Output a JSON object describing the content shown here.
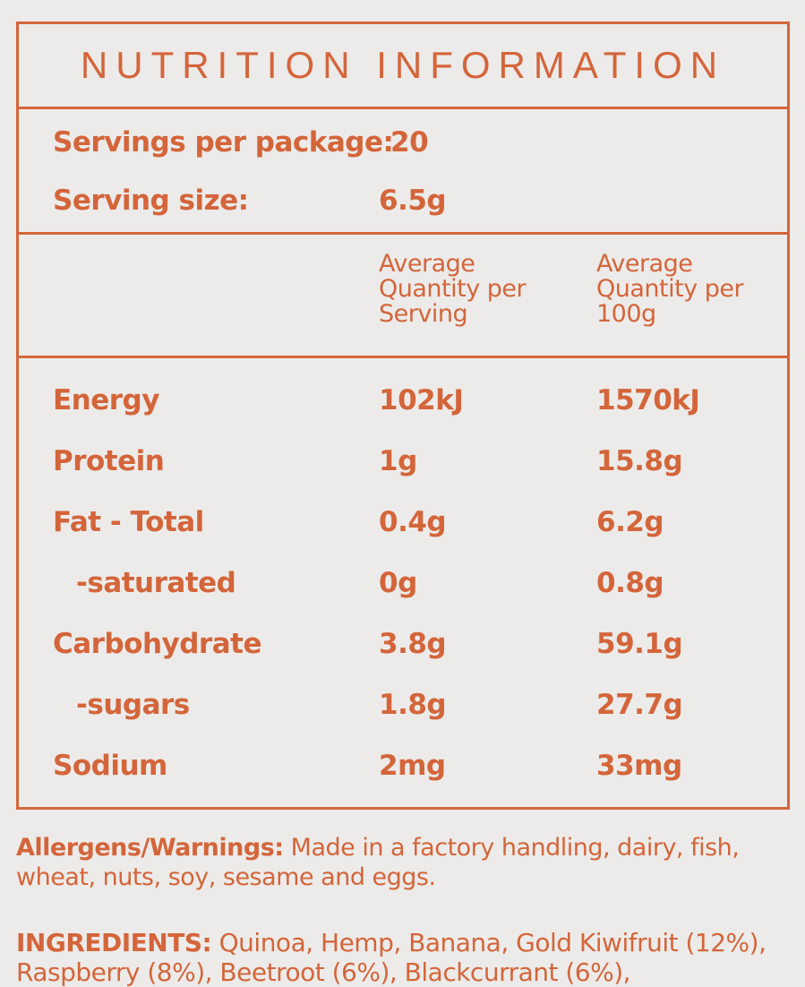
{
  "title": "NUTRITION INFORMATION",
  "servings": {
    "per_package_label": "Servings per package:",
    "per_package_value": "20",
    "size_label": "Serving size:",
    "size_value": "6.5g"
  },
  "columns": {
    "per_serving": "Average Quantity per Serving",
    "per_100g": "Average Quantity per 100g"
  },
  "rows": [
    {
      "name": "Energy",
      "serving": "102kJ",
      "per100": "1570kJ"
    },
    {
      "name": "Protein",
      "serving": "1g",
      "per100": "15.8g"
    },
    {
      "name": "Fat - Total",
      "serving": "0.4g",
      "per100": "6.2g"
    },
    {
      "name": "-saturated",
      "serving": "0g",
      "per100": "0.8g"
    },
    {
      "name": "Carbohydrate",
      "serving": "3.8g",
      "per100": "59.1g"
    },
    {
      "name": "-sugars",
      "serving": "1.8g",
      "per100": "27.7g"
    },
    {
      "name": "Sodium",
      "serving": "2mg",
      "per100": "33mg"
    }
  ],
  "allergens": {
    "label": "Allergens/Warnings:",
    "text": "Made in a factory handling, dairy, fish, wheat, nuts, soy, sesame and eggs."
  },
  "ingredients": {
    "label": "INGREDIENTS:",
    "text": "Quinoa, Hemp, Banana, Gold Kiwifruit (12%), Raspberry (8%), Beetroot (6%), Blackcurrant (6%),"
  }
}
